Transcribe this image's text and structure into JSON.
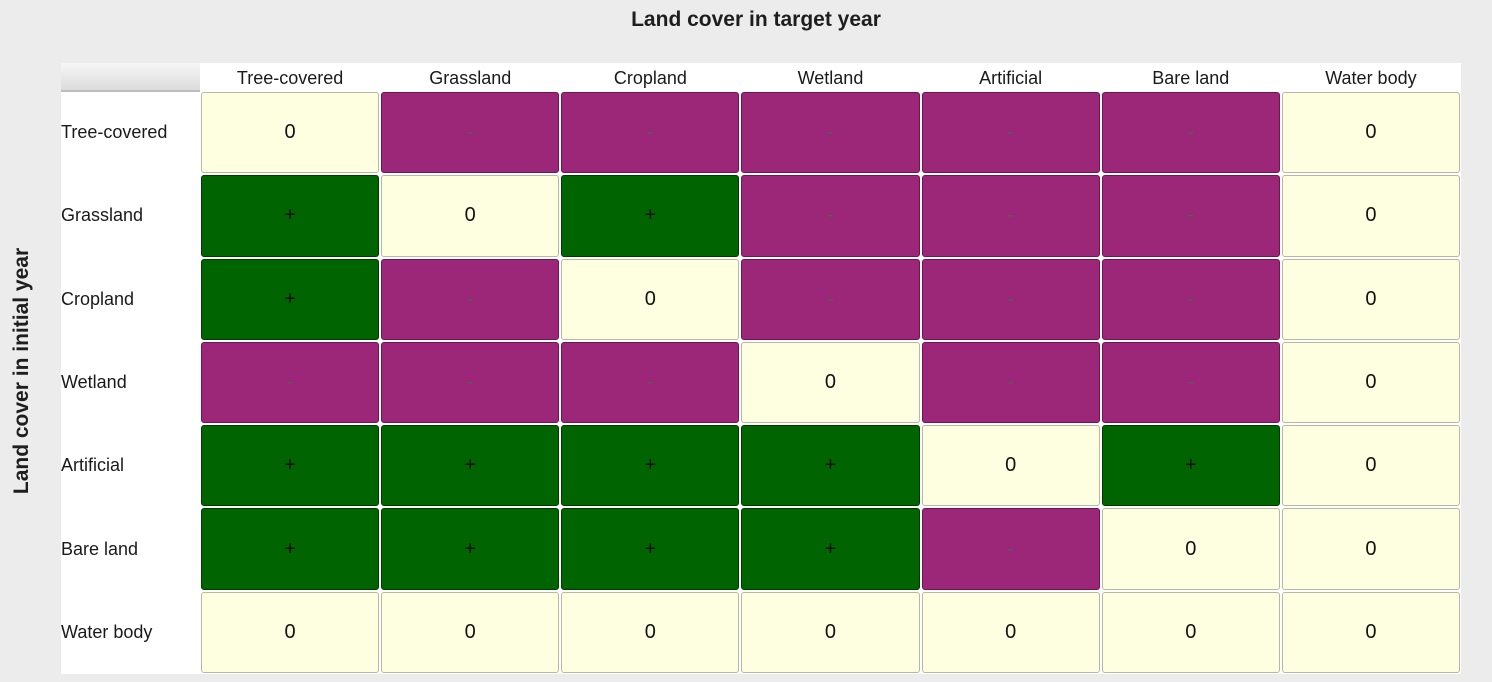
{
  "titles": {
    "target": "Land cover in target year",
    "initial": "Land cover in initial year"
  },
  "columns": [
    "Tree-covered",
    "Grassland",
    "Cropland",
    "Wetland",
    "Artificial",
    "Bare land",
    "Water body"
  ],
  "rows": [
    {
      "label": "Tree-covered",
      "cells": [
        "0",
        "-",
        "-",
        "-",
        "-",
        "-",
        "0"
      ]
    },
    {
      "label": "Grassland",
      "cells": [
        "+",
        "0",
        "+",
        "-",
        "-",
        "-",
        "0"
      ]
    },
    {
      "label": "Cropland",
      "cells": [
        "+",
        "-",
        "0",
        "-",
        "-",
        "-",
        "0"
      ]
    },
    {
      "label": "Wetland",
      "cells": [
        "-",
        "-",
        "-",
        "0",
        "-",
        "-",
        "0"
      ]
    },
    {
      "label": "Artificial",
      "cells": [
        "+",
        "+",
        "+",
        "+",
        "0",
        "+",
        "0"
      ]
    },
    {
      "label": "Bare land",
      "cells": [
        "+",
        "+",
        "+",
        "+",
        "-",
        "0",
        "0"
      ]
    },
    {
      "label": "Water body",
      "cells": [
        "0",
        "0",
        "0",
        "0",
        "0",
        "0",
        "0"
      ]
    }
  ],
  "colors": {
    "positive": "#006400",
    "negative": "#9c2677",
    "neutral": "#fefee0"
  }
}
